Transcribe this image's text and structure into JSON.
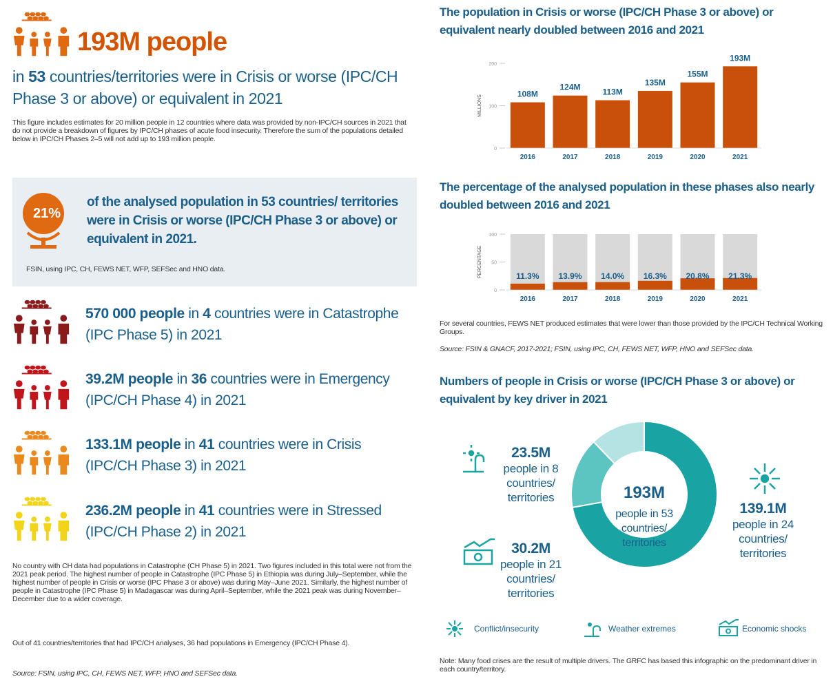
{
  "header": {
    "headline": "193M people",
    "sub_parts": [
      "in",
      "53",
      "countries/territories were in Crisis or worse (IPC/CH Phase 3 or above) or equivalent in 2021"
    ],
    "note": "This figure includes estimates for 20 million people in 12 countries where data was provided by non-IPC/CH sources in 2021 that do not provide a breakdown of figures by IPC/CH phases of acute food insecurity. Therefore the sum of the populations detailed below in IPC/CH Phases 2–5 will not add up to 193 million people."
  },
  "highlight": {
    "value": "21%",
    "text": "of the analysed population in 53 countries/ territories were in Crisis or worse (IPC/CH Phase 3 or above) or equivalent in 2021.",
    "source": "FSIN, using IPC, CH, FEWS NET, WFP, SEFSec and HNO data."
  },
  "phases": [
    {
      "lead": "570 000 people",
      "mid": "in",
      "count": "4",
      "rest": "countries were in Catastrophe (IPC Phase 5) in 2021"
    },
    {
      "lead": "39.2M people",
      "mid": "in",
      "count": "36",
      "rest": "countries were in Emergency (IPC/CH Phase 4) in 2021"
    },
    {
      "lead": "133.1M people",
      "mid": "in",
      "count": "41",
      "rest": "countries were in Crisis (IPC/CH Phase 3) in 2021"
    },
    {
      "lead": "236.2M people",
      "mid": "in",
      "count": "41",
      "rest": "countries were in Stressed (IPC/CH Phase 2) in 2021"
    }
  ],
  "footnotes": [
    "No country with CH data had populations in Catastrophe (CH Phase 5) in 2021. Two figures included in this total were not from the 2021 peak period. The highest number of people in Catastrophe (IPC Phase 5) in Ethiopia was during July–September, while the highest number of people in Crisis or worse (IPC Phase 3 or above) was during May–June 2021. Similarly, the highest number of people in Catastrophe (IPC Phase 5) in Madagascar was during April–September, while the 2021 peak was during November–December due to a wider coverage.",
    "Out of 41 countries/territories that had IPC/CH analyses, 36 had populations in Emergency (IPC/CH Phase 4)."
  ],
  "source": "Source: FSIN, using IPC, CH, FEWS NET, WFP, HNO and SEFSec data.",
  "chart_data": [
    {
      "type": "bar",
      "title": "The population in Crisis or worse (IPC/CH Phase 3 or above) or equivalent nearly doubled between 2016 and 2021",
      "ylabel": "MILLIONS",
      "categories": [
        "2016",
        "2017",
        "2018",
        "2019",
        "2020",
        "2021"
      ],
      "values": [
        108,
        124,
        113,
        135,
        155,
        193
      ],
      "value_labels": [
        "108M",
        "124M",
        "113M",
        "135M",
        "155M",
        "193M"
      ],
      "color": "#c8500a",
      "ylim": [
        0,
        200
      ],
      "yticks": [
        0,
        100,
        200
      ]
    },
    {
      "type": "bar",
      "title": "The percentage of the analysed population in these phases also nearly doubled between 2016 and 2021",
      "ylabel": "PERCENTAGE",
      "categories": [
        "2016",
        "2017",
        "2018",
        "2019",
        "2020",
        "2021"
      ],
      "values": [
        11.3,
        13.9,
        14.0,
        16.3,
        20.8,
        21.3
      ],
      "value_labels": [
        "11.3%",
        "13.9%",
        "14.0%",
        "16.3%",
        "20.8%",
        "21.3%"
      ],
      "color": "#c8500a",
      "background_color": "#d9d9d9",
      "ylim": [
        0,
        100
      ],
      "yticks": [
        0,
        50,
        100
      ]
    },
    {
      "type": "donut",
      "title": "Numbers of people in Crisis or worse (IPC/CH Phase 3 or above) or equivalent by key driver in 2021",
      "center_value": "193M",
      "center_text": "people in 53 countries/ territories",
      "categories": [
        "Conflict/insecurity",
        "Weather extremes",
        "Economic shocks"
      ],
      "values": [
        139.1,
        23.5,
        30.2
      ],
      "value_labels": [
        "139.1M",
        "23.5M",
        "30.2M"
      ],
      "details": [
        "people in 24 countries/ territories",
        "people in 8 countries/ territories",
        "people in 21 countries/ territories"
      ],
      "colors": [
        "#1aa3a3",
        "#b5e2e2",
        "#5cc4c1"
      ]
    }
  ],
  "chart_note": "For several countries, FEWS NET produced estimates that were lower than those provided by the IPC/CH Technical Working Groups.",
  "chart_source": "Source: FSIN & GNACF, 2017-2021; FSIN, using IPC, CH, FEWS NET, WFP, HNO and SEFSec data.",
  "donut_note": "Note: Many food crises are the result of multiple drivers. The GRFC has based this infographic on the predominant driver in each country/territory."
}
